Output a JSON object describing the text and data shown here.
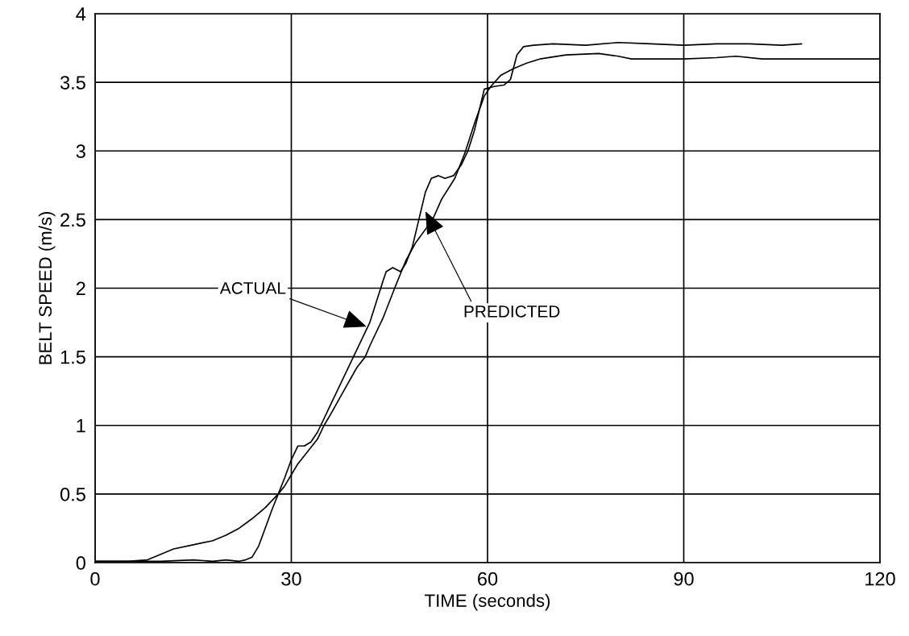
{
  "chart_data": {
    "type": "line",
    "xlabel": "TIME (seconds)",
    "ylabel": "BELT SPEED (m/s)",
    "xlim": [
      0,
      120
    ],
    "xticks": [
      0,
      30,
      60,
      90,
      120
    ],
    "ylim": [
      0,
      4
    ],
    "yticks": [
      0,
      0.5,
      1,
      1.5,
      2,
      2.5,
      3,
      3.5,
      4
    ],
    "grid": true,
    "series": [
      {
        "color": "#000000",
        "x": [
          0,
          5,
          10,
          15,
          18,
          20,
          22,
          23,
          24,
          25,
          26,
          27,
          28,
          29,
          30,
          31,
          32,
          33,
          34,
          35,
          36,
          37,
          38,
          39,
          40,
          41,
          42,
          43,
          44,
          44.5,
          45.5,
          46.7,
          47.5,
          48.5,
          49.5,
          50.5,
          51.4,
          52.5,
          53.5,
          54.8,
          56,
          57,
          58,
          59,
          59.5,
          61,
          62.5,
          63.5,
          64.5,
          65.5,
          67,
          70,
          75,
          80,
          85,
          90,
          95,
          100,
          105,
          108
        ],
        "values": [
          0.01,
          0.01,
          0.01,
          0.02,
          0.01,
          0.02,
          0.01,
          0.02,
          0.04,
          0.12,
          0.25,
          0.38,
          0.5,
          0.62,
          0.75,
          0.85,
          0.85,
          0.88,
          0.95,
          1.05,
          1.15,
          1.25,
          1.35,
          1.45,
          1.55,
          1.65,
          1.75,
          1.9,
          2.05,
          2.12,
          2.15,
          2.12,
          2.18,
          2.3,
          2.5,
          2.7,
          2.8,
          2.82,
          2.8,
          2.82,
          2.9,
          3.0,
          3.15,
          3.35,
          3.45,
          3.47,
          3.48,
          3.52,
          3.7,
          3.76,
          3.77,
          3.78,
          3.77,
          3.79,
          3.78,
          3.77,
          3.78,
          3.78,
          3.77,
          3.78
        ]
      },
      {
        "color": "#000000",
        "x": [
          0,
          5,
          8,
          10,
          12,
          15,
          18,
          20,
          22,
          24,
          26,
          28,
          29,
          30,
          31,
          32,
          33,
          34,
          35,
          36,
          38,
          40,
          41.3,
          42,
          44,
          45.8,
          47.5,
          49,
          51.6,
          53,
          55,
          56.5,
          58,
          59.5,
          60.5,
          62,
          64,
          66,
          68,
          72,
          77,
          80,
          82,
          86,
          90,
          95,
          98,
          102,
          106,
          110,
          115,
          120
        ],
        "values": [
          0.01,
          0.01,
          0.02,
          0.06,
          0.1,
          0.13,
          0.16,
          0.2,
          0.25,
          0.32,
          0.4,
          0.5,
          0.56,
          0.64,
          0.72,
          0.78,
          0.84,
          0.9,
          1.0,
          1.08,
          1.25,
          1.42,
          1.5,
          1.58,
          1.78,
          2.0,
          2.2,
          2.33,
          2.5,
          2.65,
          2.8,
          2.98,
          3.2,
          3.4,
          3.47,
          3.55,
          3.6,
          3.64,
          3.67,
          3.7,
          3.71,
          3.69,
          3.67,
          3.67,
          3.67,
          3.68,
          3.69,
          3.67,
          3.67,
          3.67,
          3.67,
          3.67
        ]
      }
    ],
    "annotations": [
      {
        "text": "ACTUAL",
        "x": 41.5,
        "y": 1.72
      },
      {
        "text": "PREDICTED",
        "x": 50.5,
        "y": 2.56
      }
    ]
  }
}
